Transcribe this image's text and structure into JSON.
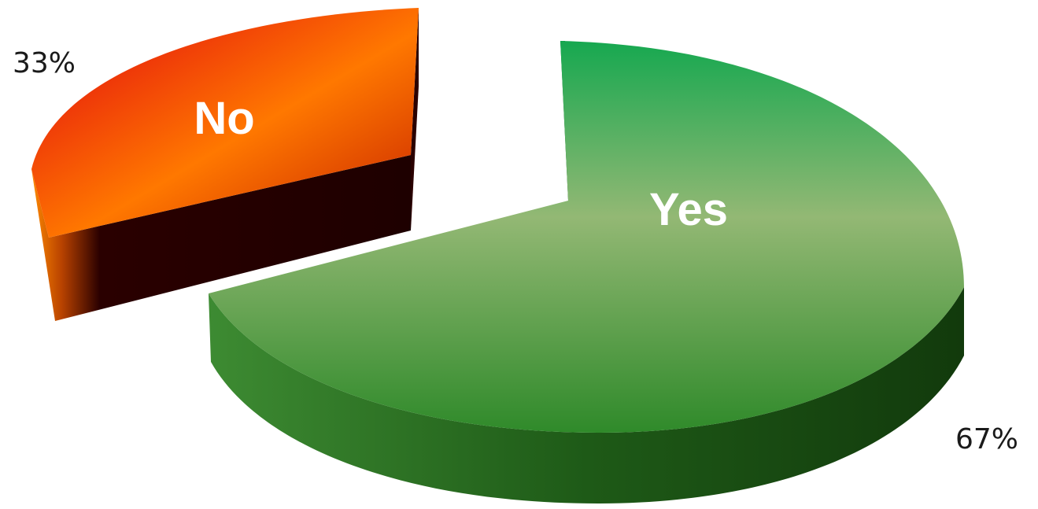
{
  "chart_data": {
    "type": "pie",
    "title": "",
    "slices": [
      {
        "label": "No",
        "value": 33,
        "value_label": "33%",
        "colors": [
          "#e8000a",
          "#ff7a00",
          "#c82000"
        ],
        "side_color": "#2a0000"
      },
      {
        "label": "Yes",
        "value": 67,
        "value_label": "67%",
        "colors": [
          "#1aa84e",
          "#8fbc6a",
          "#2f8a2a"
        ],
        "side_color": "#1d4d14"
      }
    ],
    "legend": "none",
    "style": "3d-exploded"
  }
}
